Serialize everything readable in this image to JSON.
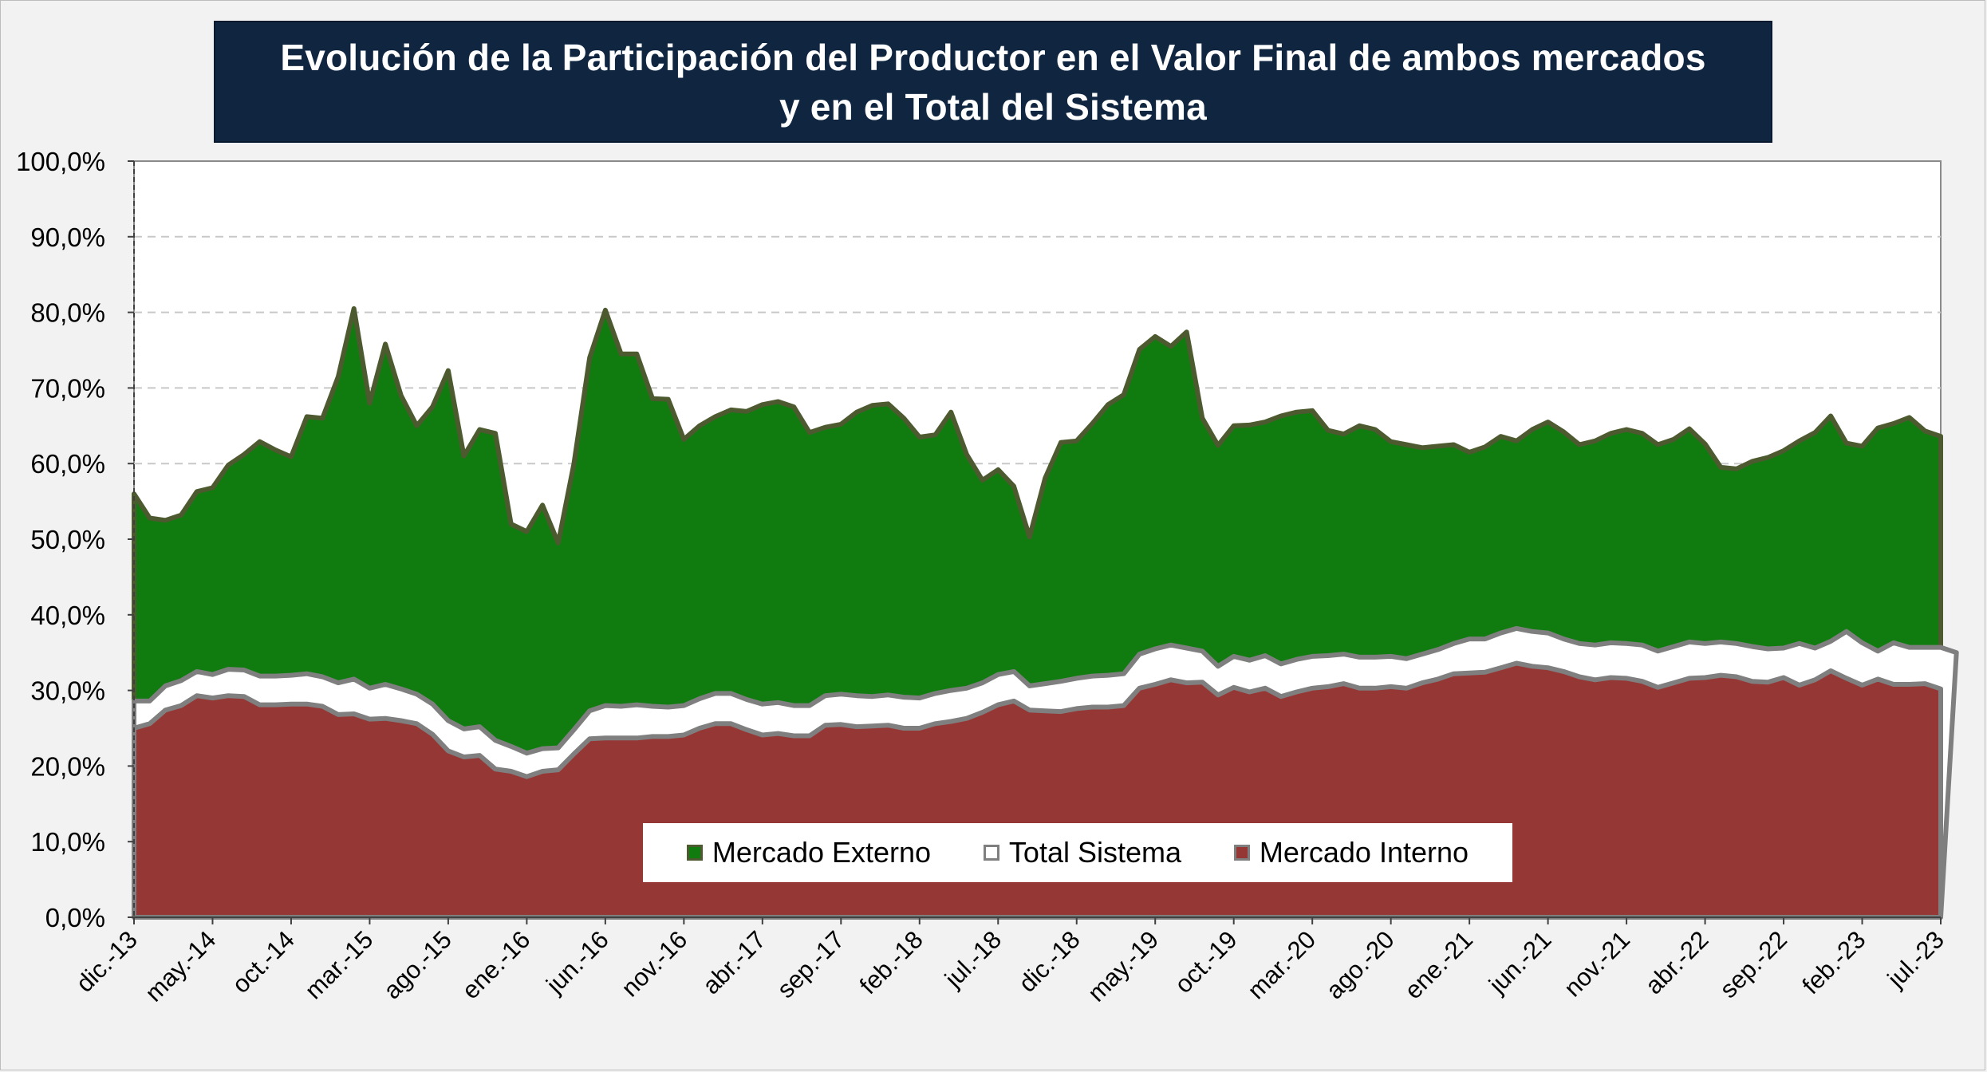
{
  "title_lines": [
    "Evolución de la Participación del Productor en el Valor Final de ambos mercados",
    "y en el Total del Sistema"
  ],
  "colors": {
    "externo": "#107c10",
    "externo_border": "#4d5a2f",
    "total": "#ffffff",
    "total_border": "#7f7f7f",
    "interno": "#953735",
    "title_bg": "#0f2540"
  },
  "chart_data": {
    "type": "area",
    "title": "Evolución de la Participación del Productor en el Valor Final de ambos mercados y en el Total del Sistema",
    "xlabel": "",
    "ylabel": "",
    "ylim": [
      0,
      100
    ],
    "y_ticks": [
      "0,0%",
      "10,0%",
      "20,0%",
      "30,0%",
      "40,0%",
      "50,0%",
      "60,0%",
      "70,0%",
      "80,0%",
      "90,0%",
      "100,0%"
    ],
    "x_tick_labels": [
      "dic.-13",
      "may.-14",
      "oct.-14",
      "mar.-15",
      "ago.-15",
      "ene.-16",
      "jun.-16",
      "nov.-16",
      "abr.-17",
      "sep.-17",
      "feb.-18",
      "jul.-18",
      "dic.-18",
      "may.-19",
      "oct.-19",
      "mar.-20",
      "ago.-20",
      "ene.-21",
      "jun.-21",
      "nov.-21",
      "abr.-22",
      "sep.-22",
      "feb.-23",
      "jul.-23"
    ],
    "x_tick_step_months": 5,
    "grid": "horizontal dashed",
    "legend_position": "bottom-center",
    "legend": [
      "Mercado Externo",
      "Total Sistema",
      "Mercado Interno"
    ],
    "series": [
      {
        "name": "Mercado Externo",
        "values": [
          56.0,
          52.8,
          52.5,
          53.2,
          56.3,
          56.8,
          59.8,
          61.2,
          62.9,
          61.8,
          60.9,
          66.2,
          66.0,
          71.5,
          80.5,
          68.0,
          75.8,
          69.0,
          65.0,
          67.5,
          72.3,
          61.0,
          64.5,
          64.0,
          52.0,
          51.0,
          54.5,
          49.5,
          60.0,
          74.0,
          80.3,
          74.5,
          74.5,
          68.6,
          68.5,
          63.2,
          65.0,
          66.2,
          67.1,
          66.9,
          67.8,
          68.2,
          67.5,
          64.1,
          64.8,
          65.2,
          66.8,
          67.7,
          67.9,
          66.0,
          63.5,
          63.8,
          66.8,
          61.2,
          57.8,
          59.2,
          57.0,
          50.3,
          58.1,
          62.8,
          63.0,
          65.3,
          67.8,
          69.1,
          75.1,
          76.8,
          75.5,
          77.4,
          66.0,
          62.4,
          65.0,
          65.1,
          65.5,
          66.3,
          66.8,
          67.0,
          64.4,
          63.9,
          65.0,
          64.5,
          62.9,
          62.5,
          62.1,
          62.3,
          62.5,
          61.5,
          62.2,
          63.6,
          63.0,
          64.5,
          65.5,
          64.2,
          62.5,
          63.0,
          64.0,
          64.5,
          64.0,
          62.5,
          63.2,
          64.6,
          62.6,
          59.5,
          59.3,
          60.3,
          60.8,
          61.7,
          63.0,
          64.1,
          66.3,
          62.7,
          62.3,
          64.7,
          65.3,
          66.1,
          64.3,
          63.6
        ]
      },
      {
        "name": "Total Sistema",
        "values": [
          28.6,
          28.6,
          30.6,
          31.3,
          32.5,
          32.1,
          32.8,
          32.7,
          31.9,
          31.9,
          32.0,
          32.2,
          31.8,
          31.0,
          31.5,
          30.3,
          30.8,
          30.2,
          29.5,
          28.2,
          26.0,
          24.9,
          25.2,
          23.4,
          22.6,
          21.7,
          22.3,
          22.4,
          24.8,
          27.3,
          28.0,
          27.9,
          28.1,
          27.9,
          27.8,
          28.0,
          28.9,
          29.6,
          29.6,
          28.8,
          28.2,
          28.4,
          28.0,
          28.0,
          29.3,
          29.5,
          29.3,
          29.2,
          29.4,
          29.1,
          29.0,
          29.6,
          30.0,
          30.3,
          31.0,
          32.1,
          32.5,
          30.6,
          30.9,
          31.2,
          31.6,
          31.9,
          32.0,
          32.2,
          34.8,
          35.5,
          36.0,
          35.6,
          35.2,
          33.2,
          34.5,
          34.0,
          34.6,
          33.5,
          34.1,
          34.5,
          34.6,
          34.8,
          34.4,
          34.4,
          34.5,
          34.2,
          34.8,
          35.4,
          36.2,
          36.8,
          36.8,
          37.6,
          38.2,
          37.8,
          37.6,
          36.8,
          36.2,
          36.0,
          36.3,
          36.2,
          36.0,
          35.2,
          35.8,
          36.4,
          36.2,
          36.4,
          36.2,
          35.8,
          35.5,
          35.6,
          36.2,
          35.6,
          36.5,
          37.8,
          36.3,
          35.2,
          36.3,
          35.7,
          35.7,
          35.7,
          35.0
        ]
      },
      {
        "name": "Mercado Interno",
        "values": [
          25.0,
          25.6,
          27.4,
          28.0,
          29.3,
          29.0,
          29.3,
          29.2,
          28.1,
          28.1,
          28.2,
          28.2,
          27.9,
          26.8,
          26.9,
          26.2,
          26.3,
          26.0,
          25.6,
          24.2,
          22.0,
          21.2,
          21.4,
          19.6,
          19.3,
          18.6,
          19.3,
          19.5,
          21.6,
          23.6,
          23.7,
          23.7,
          23.7,
          23.9,
          23.9,
          24.1,
          25.0,
          25.6,
          25.6,
          24.8,
          24.1,
          24.3,
          24.0,
          24.0,
          25.4,
          25.5,
          25.2,
          25.3,
          25.4,
          25.0,
          25.0,
          25.6,
          25.9,
          26.3,
          27.1,
          28.1,
          28.6,
          27.4,
          27.3,
          27.2,
          27.6,
          27.8,
          27.8,
          28.0,
          30.3,
          30.8,
          31.4,
          31.0,
          31.1,
          29.4,
          30.4,
          29.8,
          30.3,
          29.2,
          29.8,
          30.3,
          30.5,
          30.9,
          30.3,
          30.3,
          30.5,
          30.3,
          31.0,
          31.5,
          32.2,
          32.3,
          32.4,
          33.0,
          33.6,
          33.2,
          33.0,
          32.5,
          31.8,
          31.4,
          31.7,
          31.6,
          31.2,
          30.4,
          31.0,
          31.6,
          31.7,
          32.0,
          31.8,
          31.2,
          31.1,
          31.7,
          30.7,
          31.4,
          32.6,
          31.6,
          30.7,
          31.5,
          30.8,
          30.8,
          30.9,
          30.2
        ]
      }
    ]
  }
}
